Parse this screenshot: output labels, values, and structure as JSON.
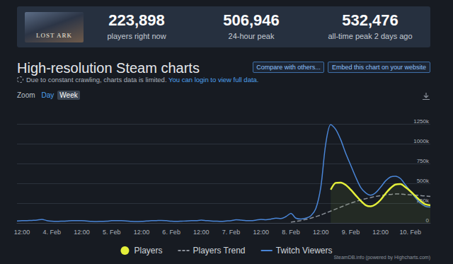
{
  "page": {
    "game_logo": "LOST ARK",
    "stats": [
      {
        "value": "223,898",
        "label": "players right now"
      },
      {
        "value": "506,946",
        "label": "24-hour peak"
      },
      {
        "value": "532,476",
        "label": "all-time peak 2 days ago"
      }
    ],
    "title": "High-resolution Steam charts",
    "buttons": [
      "Compare with others...",
      "Embed this chart on your website"
    ],
    "notice": "Due to constant crawling, charts data is limited.",
    "notice_link": "You can login to view full data.",
    "zoom": {
      "label": "Zoom",
      "options": [
        "Day",
        "Week"
      ],
      "selected": "Week"
    },
    "credit": "SteamDB.info (powered by Highcharts.com)"
  },
  "chart_data": {
    "type": "line",
    "categories": [
      null,
      "12:00",
      null,
      null,
      null,
      null,
      null,
      "4. Feb",
      null,
      null,
      null,
      null,
      null,
      "12:00",
      null,
      null,
      null,
      null,
      null,
      "5. Feb",
      null,
      null,
      null,
      null,
      null,
      "12:00",
      null,
      null,
      null,
      null,
      null,
      "6. Feb",
      null,
      null,
      null,
      null,
      null,
      "12:00",
      null,
      null,
      null,
      null,
      null,
      "7. Feb",
      null,
      null,
      null,
      null,
      null,
      "12:00",
      null,
      null,
      null,
      null,
      null,
      "8. Feb",
      null,
      null,
      null,
      null,
      null,
      "12:00",
      null,
      null,
      null,
      null,
      null,
      "9. Feb",
      null,
      null,
      null,
      null,
      null,
      "12:00",
      null,
      null,
      null,
      null,
      null,
      "10. Feb",
      null,
      null,
      null,
      null
    ],
    "series": [
      {
        "name": "Players",
        "type": "area",
        "color": "#e4ef3a",
        "line_style": "solid",
        "values": [
          null,
          null,
          null,
          null,
          null,
          null,
          null,
          null,
          null,
          null,
          null,
          null,
          null,
          null,
          null,
          null,
          null,
          null,
          null,
          null,
          null,
          null,
          null,
          null,
          null,
          null,
          null,
          null,
          null,
          null,
          null,
          null,
          null,
          null,
          null,
          null,
          null,
          null,
          null,
          null,
          null,
          null,
          null,
          null,
          null,
          null,
          null,
          null,
          null,
          null,
          null,
          null,
          null,
          null,
          null,
          null,
          null,
          null,
          null,
          null,
          null,
          null,
          null,
          420000,
          505000,
          510000,
          480000,
          420000,
          350000,
          280000,
          225000,
          210000,
          235000,
          290000,
          370000,
          440000,
          485000,
          490000,
          450000,
          400000,
          340000,
          280000,
          235000,
          224000
        ]
      },
      {
        "name": "Players Trend",
        "type": "line",
        "color": "#8c929b",
        "line_style": "dashed",
        "values": [
          null,
          null,
          null,
          null,
          null,
          null,
          null,
          null,
          null,
          null,
          null,
          null,
          null,
          null,
          null,
          null,
          null,
          null,
          null,
          null,
          null,
          null,
          null,
          null,
          null,
          null,
          null,
          null,
          null,
          null,
          null,
          null,
          null,
          null,
          null,
          null,
          null,
          null,
          null,
          null,
          null,
          null,
          null,
          null,
          null,
          null,
          null,
          null,
          null,
          null,
          null,
          null,
          null,
          null,
          null,
          10000,
          20000,
          30000,
          45000,
          60000,
          80000,
          100000,
          125000,
          150000,
          175000,
          200000,
          225000,
          250000,
          270000,
          290000,
          305000,
          320000,
          335000,
          345000,
          355000,
          360000,
          365000,
          365000,
          360000,
          355000,
          350000,
          345000,
          340000,
          335000
        ]
      },
      {
        "name": "Twitch Viewers",
        "type": "line",
        "color": "#4a86d8",
        "line_style": "solid",
        "values": [
          25000,
          28000,
          30000,
          32000,
          35000,
          45000,
          30000,
          22000,
          20000,
          22000,
          25000,
          30000,
          28000,
          30000,
          25000,
          20000,
          18000,
          20000,
          22000,
          28000,
          30000,
          28000,
          25000,
          20000,
          18000,
          20000,
          24000,
          28000,
          30000,
          32000,
          28000,
          22000,
          20000,
          22000,
          25000,
          28000,
          30000,
          35000,
          30000,
          25000,
          22000,
          20000,
          25000,
          30000,
          40000,
          35000,
          30000,
          28000,
          35000,
          45000,
          40000,
          50000,
          60000,
          55000,
          80000,
          120000,
          60000,
          50000,
          60000,
          90000,
          180000,
          450000,
          1000000,
          1240000,
          1180000,
          1050000,
          880000,
          730000,
          580000,
          450000,
          380000,
          350000,
          380000,
          450000,
          530000,
          580000,
          590000,
          560000,
          480000,
          400000,
          320000,
          250000,
          210000,
          200000
        ]
      }
    ],
    "ylim": [
      0,
      1250000
    ],
    "yticks": [
      0,
      {
        "value": 250000,
        "label": "250k"
      },
      {
        "value": 500000,
        "label": "500k"
      },
      {
        "value": 750000,
        "label": "750k"
      },
      {
        "value": 1000000,
        "label": "1000k"
      },
      {
        "value": 1250000,
        "label": "1250k"
      }
    ],
    "grid": true,
    "legend": "bottom"
  }
}
